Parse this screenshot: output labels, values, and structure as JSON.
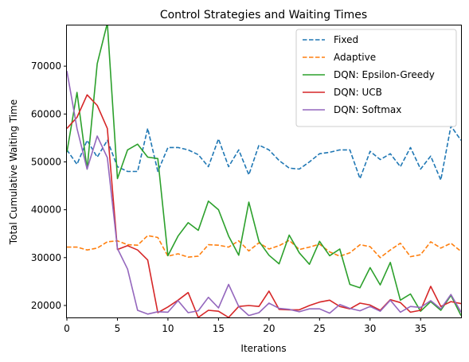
{
  "chart_data": {
    "type": "line",
    "title": "Control Strategies and Waiting Times",
    "xlabel": "Iterations",
    "ylabel": "Total Cumulative Waiting Time",
    "xlim": [
      0,
      39
    ],
    "ylim": [
      17500,
      78500
    ],
    "xticks": [
      0,
      5,
      10,
      15,
      20,
      25,
      30,
      35
    ],
    "yticks": [
      20000,
      30000,
      40000,
      50000,
      60000,
      70000
    ],
    "grid": false,
    "legend_position": "upper right",
    "x": [
      0,
      1,
      2,
      3,
      4,
      5,
      6,
      7,
      8,
      9,
      10,
      11,
      12,
      13,
      14,
      15,
      16,
      17,
      18,
      19,
      20,
      21,
      22,
      23,
      24,
      25,
      26,
      27,
      28,
      29,
      30,
      31,
      32,
      33,
      34,
      35,
      36,
      37,
      38,
      39
    ],
    "series": [
      {
        "name": "Fixed",
        "color": "#1f77b4",
        "dash": true,
        "values": [
          52500,
          49500,
          54500,
          51000,
          54500,
          49000,
          48000,
          48000,
          57000,
          48000,
          53000,
          53000,
          52500,
          51500,
          49000,
          54800,
          49000,
          52500,
          47300,
          53500,
          52500,
          50300,
          48700,
          48500,
          50000,
          51700,
          52000,
          52500,
          52500,
          46500,
          52200,
          50500,
          51700,
          49000,
          53000,
          48500,
          51200,
          46200,
          57500,
          54500
        ]
      },
      {
        "name": "Adaptive",
        "color": "#ff7f0e",
        "dash": true,
        "values": [
          32200,
          32200,
          31600,
          32000,
          33300,
          33500,
          32700,
          32600,
          34600,
          34200,
          30300,
          30800,
          30100,
          30300,
          32700,
          32600,
          32200,
          33500,
          31400,
          33100,
          31800,
          32500,
          33600,
          31700,
          32200,
          32800,
          31200,
          30300,
          31000,
          32700,
          32300,
          30000,
          31600,
          33000,
          30200,
          30600,
          33300,
          32000,
          33000,
          31300
        ]
      },
      {
        "name": "DQN: Epsilon-Greedy",
        "color": "#2ca02c",
        "dash": false,
        "values": [
          52000,
          64500,
          48500,
          70500,
          79000,
          46500,
          52500,
          53700,
          51000,
          50700,
          30400,
          34500,
          37300,
          35700,
          41800,
          40000,
          34500,
          30500,
          41600,
          33400,
          30500,
          28700,
          34700,
          31000,
          28600,
          33400,
          30400,
          31800,
          24400,
          23700,
          27900,
          24300,
          29000,
          21100,
          22400,
          18800,
          20800,
          19000,
          22100,
          17900
        ]
      },
      {
        "name": "DQN: UCB",
        "color": "#d62728",
        "dash": false,
        "values": [
          57000,
          59300,
          64000,
          61800,
          57000,
          31700,
          32500,
          31600,
          29500,
          18500,
          19700,
          21100,
          22700,
          17500,
          19000,
          18800,
          17500,
          19800,
          20000,
          19800,
          23000,
          19200,
          19100,
          19100,
          20000,
          20700,
          21100,
          19800,
          19300,
          20500,
          20100,
          19000,
          21200,
          20600,
          18600,
          19000,
          24000,
          19800,
          20800,
          20400
        ]
      },
      {
        "name": "DQN: Softmax",
        "color": "#9467bd",
        "dash": false,
        "values": [
          69000,
          57000,
          48500,
          55400,
          50900,
          31900,
          27600,
          19000,
          18200,
          18700,
          18600,
          21000,
          18500,
          18900,
          21700,
          19500,
          24400,
          19800,
          17900,
          18500,
          20500,
          19400,
          19200,
          18700,
          19300,
          19300,
          18400,
          20200,
          19400,
          18900,
          19800,
          18800,
          21100,
          18600,
          19800,
          19600,
          21000,
          19300,
          22300,
          18600
        ]
      }
    ]
  }
}
